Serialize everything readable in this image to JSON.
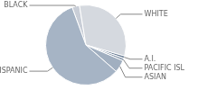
{
  "chart_data": {
    "type": "pie",
    "categories": [
      "BLACK",
      "WHITE",
      "A.I.",
      "PACIFIC ISL",
      "ASIAN",
      "HISPANIC"
    ],
    "values": [
      3,
      32,
      1,
      1,
      5,
      58
    ],
    "colors": [
      "#c9ced7",
      "#d5d9df",
      "#6e8198",
      "#8797ab",
      "#a1afc0",
      "#a6b4c5"
    ]
  }
}
